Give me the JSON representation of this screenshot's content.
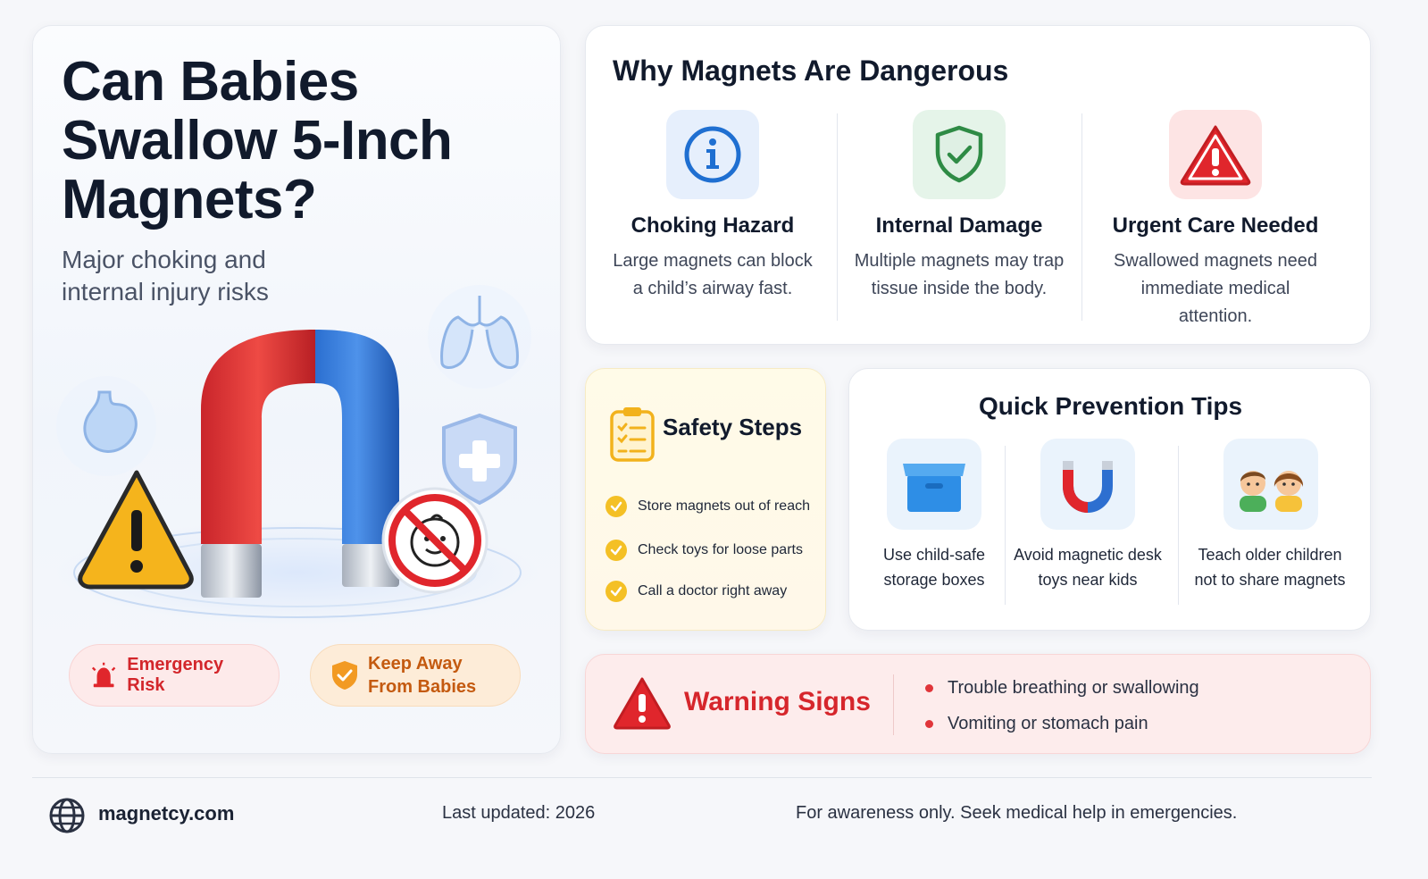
{
  "hero": {
    "title": "Can Babies Swallow 5-Inch Magnets?",
    "subtitle": "Major choking and internal injury risks",
    "badges": [
      {
        "label": "Emergency Risk",
        "icon": "siren-icon",
        "color": "#d3262b"
      },
      {
        "label": "Keep Away From Babies",
        "icon": "shield-check-icon",
        "color": "#c45a10"
      }
    ]
  },
  "why": {
    "title": "Why Magnets Are Dangerous",
    "items": [
      {
        "heading": "Choking Hazard",
        "text": "Large magnets can block a child’s airway fast.",
        "icon": "info-icon",
        "color": "#1f6fd1"
      },
      {
        "heading": "Internal Damage",
        "text": "Multiple magnets may trap tissue inside the body.",
        "icon": "shield-check-icon",
        "color": "#2e8b45"
      },
      {
        "heading": "Urgent Care Needed",
        "text": "Swallowed magnets need immediate medical attention.",
        "icon": "warning-triangle-icon",
        "color": "#d6262c"
      }
    ]
  },
  "safety_steps": {
    "title": "Safety Steps",
    "items": [
      "Store magnets out of reach",
      "Check toys for loose parts",
      "Call a doctor right away"
    ]
  },
  "tips": {
    "title": "Quick Prevention Tips",
    "items": [
      {
        "text": "Use child-safe storage boxes",
        "icon": "storage-box-icon"
      },
      {
        "text": "Avoid magnetic desk toys near kids",
        "icon": "horseshoe-magnet-icon"
      },
      {
        "text": "Teach older children not to share magnets",
        "icon": "children-icon"
      }
    ]
  },
  "warning": {
    "title": "Warning Signs",
    "items": [
      "Trouble breathing or swallowing",
      "Vomiting or stomach pain"
    ]
  },
  "footer": {
    "site": "magnetcy.com",
    "updated": "Last updated: 2026",
    "disclaimer": "For awareness only. Seek medical help in emergencies."
  },
  "colors": {
    "danger": "#d6262c",
    "accent_blue": "#1f6fd1",
    "accent_yellow": "#f4c025"
  }
}
